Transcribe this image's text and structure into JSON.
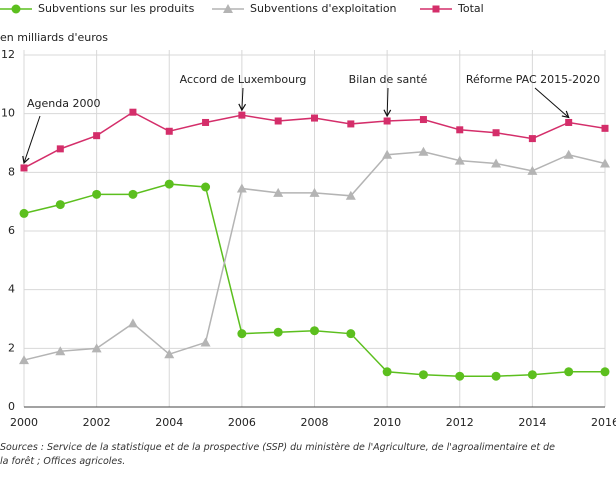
{
  "chart_data": {
    "type": "line",
    "y_label": "en milliards d'euros",
    "x": [
      2000,
      2001,
      2002,
      2003,
      2004,
      2005,
      2006,
      2007,
      2008,
      2009,
      2010,
      2011,
      2012,
      2013,
      2014,
      2015,
      2016
    ],
    "series": [
      {
        "name": "Subventions sur les produits",
        "color": "#5cbf1e",
        "marker": "circle",
        "values": [
          6.6,
          6.9,
          7.25,
          7.25,
          7.6,
          7.5,
          2.5,
          2.55,
          2.6,
          2.5,
          1.2,
          1.1,
          1.05,
          1.05,
          1.1,
          1.2,
          1.2
        ]
      },
      {
        "name": "Subventions d'exploitation",
        "color": "#b4b4b4",
        "marker": "triangle",
        "values": [
          1.6,
          1.9,
          2.0,
          2.85,
          1.8,
          2.2,
          7.45,
          7.3,
          7.3,
          7.2,
          8.6,
          8.7,
          8.4,
          8.3,
          8.05,
          8.6,
          8.3
        ]
      },
      {
        "name": "Total",
        "color": "#d42e6a",
        "marker": "square",
        "values": [
          8.15,
          8.8,
          9.25,
          10.05,
          9.4,
          9.7,
          9.95,
          9.75,
          9.85,
          9.65,
          9.75,
          9.8,
          9.45,
          9.35,
          9.15,
          9.7,
          9.5
        ]
      }
    ],
    "xlim": [
      2000,
      2016
    ],
    "xticks": [
      2000,
      2002,
      2004,
      2006,
      2008,
      2010,
      2012,
      2014,
      2016
    ],
    "ylim": [
      0,
      12
    ],
    "yticks": [
      0,
      2,
      4,
      6,
      8,
      10,
      12
    ],
    "grid": true,
    "annotations": [
      {
        "text": "Agenda 2000",
        "x": 2000,
        "y": 8.15
      },
      {
        "text": "Accord de Luxembourg",
        "x": 2006,
        "y": 9.95
      },
      {
        "text": "Bilan de santé",
        "x": 2010,
        "y": 9.75
      },
      {
        "text": "Réforme PAC 2015-2020",
        "x": 2015,
        "y": 9.7
      }
    ],
    "source": "Sources : Service de la statistique et de la prospective (SSP) du ministère de l'Agriculture, de l'agroalimentaire et de la forêt ; Offices agricoles."
  }
}
